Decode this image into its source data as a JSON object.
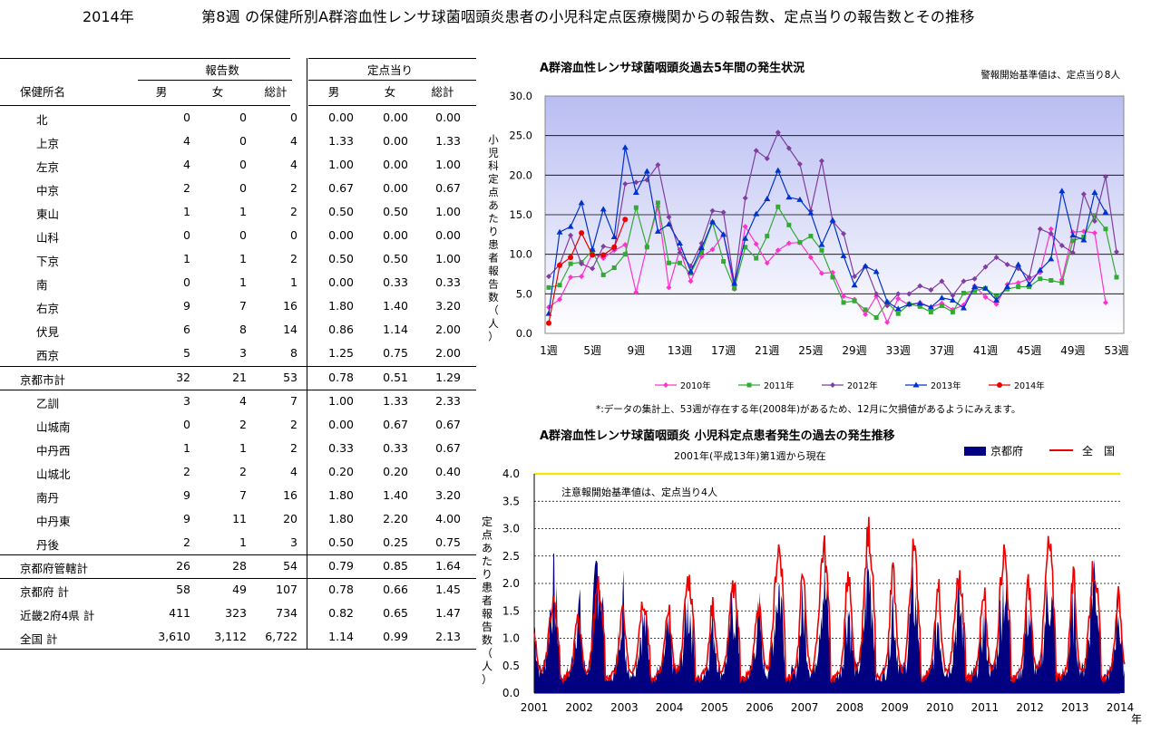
{
  "header": {
    "year": "2014年",
    "title": "第8週 の保健所別A群溶血性レンサ球菌咽頭炎患者の小児科定点医療機関からの報告数、定点当りの報告数とその推移"
  },
  "table": {
    "group_headers": {
      "reports": "報告数",
      "per_site": "定点当り"
    },
    "columns": [
      "保健所名",
      "男",
      "女",
      "総計",
      "男",
      "女",
      "総計"
    ],
    "rows": [
      {
        "name": "北",
        "m": "0",
        "f": "0",
        "t": "0",
        "pm": "0.00",
        "pf": "0.00",
        "pt": "0.00",
        "indent": true
      },
      {
        "name": "上京",
        "m": "4",
        "f": "0",
        "t": "4",
        "pm": "1.33",
        "pf": "0.00",
        "pt": "1.33",
        "indent": true
      },
      {
        "name": "左京",
        "m": "4",
        "f": "0",
        "t": "4",
        "pm": "1.00",
        "pf": "0.00",
        "pt": "1.00",
        "indent": true
      },
      {
        "name": "中京",
        "m": "2",
        "f": "0",
        "t": "2",
        "pm": "0.67",
        "pf": "0.00",
        "pt": "0.67",
        "indent": true
      },
      {
        "name": "東山",
        "m": "1",
        "f": "1",
        "t": "2",
        "pm": "0.50",
        "pf": "0.50",
        "pt": "1.00",
        "indent": true
      },
      {
        "name": "山科",
        "m": "0",
        "f": "0",
        "t": "0",
        "pm": "0.00",
        "pf": "0.00",
        "pt": "0.00",
        "indent": true
      },
      {
        "name": "下京",
        "m": "1",
        "f": "1",
        "t": "2",
        "pm": "0.50",
        "pf": "0.50",
        "pt": "1.00",
        "indent": true
      },
      {
        "name": "南",
        "m": "0",
        "f": "1",
        "t": "1",
        "pm": "0.00",
        "pf": "0.33",
        "pt": "0.33",
        "indent": true
      },
      {
        "name": "右京",
        "m": "9",
        "f": "7",
        "t": "16",
        "pm": "1.80",
        "pf": "1.40",
        "pt": "3.20",
        "indent": true
      },
      {
        "name": "伏見",
        "m": "6",
        "f": "8",
        "t": "14",
        "pm": "0.86",
        "pf": "1.14",
        "pt": "2.00",
        "indent": true
      },
      {
        "name": "西京",
        "m": "5",
        "f": "3",
        "t": "8",
        "pm": "1.25",
        "pf": "0.75",
        "pt": "2.00",
        "indent": true
      },
      {
        "name": "京都市計",
        "m": "32",
        "f": "21",
        "t": "53",
        "pm": "0.78",
        "pf": "0.51",
        "pt": "1.29",
        "indent": false
      },
      {
        "name": "乙訓",
        "m": "3",
        "f": "4",
        "t": "7",
        "pm": "1.00",
        "pf": "1.33",
        "pt": "2.33",
        "indent": true
      },
      {
        "name": "山城南",
        "m": "0",
        "f": "2",
        "t": "2",
        "pm": "0.00",
        "pf": "0.67",
        "pt": "0.67",
        "indent": true
      },
      {
        "name": "中丹西",
        "m": "1",
        "f": "1",
        "t": "2",
        "pm": "0.33",
        "pf": "0.33",
        "pt": "0.67",
        "indent": true
      },
      {
        "name": "山城北",
        "m": "2",
        "f": "2",
        "t": "4",
        "pm": "0.20",
        "pf": "0.20",
        "pt": "0.40",
        "indent": true
      },
      {
        "name": "南丹",
        "m": "9",
        "f": "7",
        "t": "16",
        "pm": "1.80",
        "pf": "1.40",
        "pt": "3.20",
        "indent": true
      },
      {
        "name": "中丹東",
        "m": "9",
        "f": "11",
        "t": "20",
        "pm": "1.80",
        "pf": "2.20",
        "pt": "4.00",
        "indent": true
      },
      {
        "name": "丹後",
        "m": "2",
        "f": "1",
        "t": "3",
        "pm": "0.50",
        "pf": "0.25",
        "pt": "0.75",
        "indent": true
      },
      {
        "name": "京都府管轄計",
        "m": "26",
        "f": "28",
        "t": "54",
        "pm": "0.79",
        "pf": "0.85",
        "pt": "1.64",
        "indent": false
      },
      {
        "name": "京都府 計",
        "m": "58",
        "f": "49",
        "t": "107",
        "pm": "0.78",
        "pf": "0.66",
        "pt": "1.45",
        "indent": false
      },
      {
        "name": "近畿2府4県 計",
        "m": "411",
        "f": "323",
        "t": "734",
        "pm": "0.82",
        "pf": "0.65",
        "pt": "1.47",
        "indent": false
      },
      {
        "name": "全国 計",
        "m": "3,610",
        "f": "3,112",
        "t": "6,722",
        "pm": "1.14",
        "pf": "0.99",
        "pt": "2.13",
        "indent": false
      }
    ]
  },
  "chart_data": [
    {
      "type": "line",
      "title": "A群溶血性レンサ球菌咽頭炎過去5年間の発生状況",
      "note_top": "警報開始基準値は、定点当り8人",
      "ylabel": "小児科定点あたり患者報告数（人）",
      "ylim": [
        0,
        30
      ],
      "yticks": [
        "0.0",
        "5.0",
        "10.0",
        "15.0",
        "20.0",
        "25.0",
        "30.0"
      ],
      "xticks": [
        "1週",
        "5週",
        "9週",
        "13週",
        "17週",
        "21週",
        "25週",
        "29週",
        "33週",
        "37週",
        "41週",
        "45週",
        "49週",
        "53週"
      ],
      "footnote": "*:データの集計上、53週が存在する年(2008年)があるため、12月に欠損値があるようにみえます。",
      "series": [
        {
          "name": "2010年",
          "color": "#ff33cc",
          "marker": "diamond",
          "values": [
            3.3,
            4.3,
            7.1,
            7.2,
            10.1,
            9.5,
            10.5,
            11.2,
            5.2,
            11.0,
            16.0,
            5.8,
            10.6,
            6.6,
            9.7,
            10.6,
            12.5,
            5.6,
            13.5,
            11.3,
            8.9,
            10.5,
            11.4,
            11.5,
            9.6,
            7.6,
            7.7,
            4.7,
            4.3,
            2.4,
            4.7,
            1.4,
            4.4,
            3.6,
            3.9,
            3.3,
            3.8,
            3.0,
            3.6,
            6.0,
            4.6,
            3.7,
            6.2,
            6.4,
            6.9,
            7.7,
            13.2,
            6.8,
            12.8,
            12.9,
            12.7,
            3.9
          ]
        },
        {
          "name": "2011年",
          "color": "#33aa33",
          "marker": "square",
          "values": [
            5.8,
            6.1,
            8.8,
            9.0,
            10.5,
            7.4,
            8.3,
            10.0,
            15.9,
            10.9,
            16.5,
            8.9,
            8.9,
            7.6,
            10.3,
            14.0,
            9.1,
            5.7,
            10.9,
            9.5,
            12.3,
            16.0,
            13.7,
            11.5,
            12.3,
            10.5,
            7.1,
            3.9,
            4.1,
            3.0,
            2.0,
            3.9,
            2.5,
            3.7,
            3.4,
            2.7,
            3.5,
            2.7,
            5.1,
            5.4,
            5.7,
            4.7,
            5.6,
            5.9,
            5.9,
            6.9,
            6.7,
            6.4,
            11.7,
            12.2,
            14.9,
            13.2,
            7.1
          ]
        },
        {
          "name": "2012年",
          "color": "#7f3f9f",
          "marker": "diamond",
          "values": [
            7.2,
            8.7,
            12.4,
            8.8,
            8.2,
            11.0,
            10.7,
            18.9,
            19.1,
            19.4,
            21.3,
            14.7,
            10.2,
            8.5,
            11.4,
            15.5,
            15.3,
            6.3,
            17.1,
            23.1,
            22.1,
            25.4,
            23.4,
            21.4,
            15.5,
            21.8,
            14.2,
            12.6,
            7.2,
            8.5,
            5.0,
            3.5,
            5.0,
            5.0,
            6.0,
            5.5,
            6.6,
            4.8,
            6.6,
            6.9,
            8.4,
            9.6,
            8.7,
            8.2,
            7.1,
            13.2,
            12.6,
            11.1,
            10.2,
            17.6,
            14.2,
            19.8,
            10.3
          ]
        },
        {
          "name": "2013年",
          "color": "#0033cc",
          "marker": "triangle",
          "values": [
            2.5,
            12.8,
            13.5,
            16.5,
            10.6,
            15.7,
            12.2,
            23.5,
            17.8,
            20.5,
            12.9,
            13.8,
            11.4,
            7.8,
            10.8,
            14.1,
            12.5,
            6.3,
            12.0,
            15.1,
            17.0,
            20.6,
            17.2,
            16.9,
            15.2,
            11.2,
            14.3,
            9.8,
            6.1,
            8.5,
            7.8,
            4.0,
            3.1,
            3.7,
            3.8,
            3.3,
            4.5,
            4.2,
            3.2,
            5.9,
            5.7,
            4.2,
            5.9,
            8.7,
            6.2,
            8.0,
            9.4,
            18.0,
            12.4,
            11.8,
            17.8,
            15.3
          ]
        },
        {
          "name": "2014年",
          "color": "#ee0000",
          "marker": "circle",
          "values": [
            1.3,
            8.6,
            9.6,
            12.7,
            9.9,
            9.9,
            10.9,
            14.4
          ]
        }
      ]
    },
    {
      "type": "area",
      "title": "A群溶血性レンサ球菌咽頭炎 小児科定点患者発生の過去の発生推移",
      "subtitle": "2001年(平成13年)第1週から現在",
      "note": "注意報開始基準値は、定点当り4人",
      "ylabel": "定点あたり患者報告数（人）",
      "xlabel": "年",
      "ylim": [
        0,
        4
      ],
      "yticks": [
        "0.0",
        "0.5",
        "1.0",
        "1.5",
        "2.0",
        "2.5",
        "3.0",
        "3.5",
        "4.0"
      ],
      "xticks": [
        "2001",
        "2002",
        "2003",
        "2004",
        "2005",
        "2006",
        "2007",
        "2008",
        "2009",
        "2010",
        "2011",
        "2012",
        "2013",
        "2014"
      ],
      "threshold": 4.0,
      "series": [
        {
          "name": "京都府",
          "color": "#000080",
          "style": "area",
          "yearly_peaks": [
            1.9,
            2.4,
            1.3,
            1.6,
            1.6,
            2.0,
            2.0,
            2.2,
            1.8,
            1.6,
            2.0,
            1.9,
            2.2,
            1.5
          ]
        },
        {
          "name": "全　国",
          "color": "#ee0000",
          "style": "line",
          "yearly_peaks": [
            1.7,
            2.0,
            1.8,
            2.2,
            2.0,
            2.8,
            2.8,
            3.1,
            2.7,
            2.2,
            2.7,
            2.8,
            2.4,
            2.2
          ]
        }
      ]
    }
  ]
}
